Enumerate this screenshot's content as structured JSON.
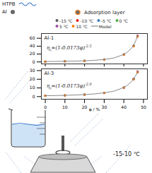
{
  "diagram": {
    "materials": [
      {
        "label": "HTPB"
      },
      {
        "label": "Al"
      },
      {
        "label": "Adsorption layer"
      }
    ],
    "condition": "-15-10 ℃"
  },
  "chart_data": [
    {
      "type": "scatter",
      "title": "Al-1",
      "marker": "circle",
      "tick_labels": "y",
      "equation": {
        "symbol": "η",
        "subscript": "r",
        "expression": "=(1-0.0173φ)",
        "exponent": "-2.5"
      },
      "x": [
        0,
        10,
        20,
        30,
        40,
        45,
        47
      ],
      "xlim": [
        -2,
        52
      ],
      "xticks": [
        0,
        10,
        20,
        30,
        40,
        50
      ],
      "ylim": [
        -5,
        72
      ],
      "yticks": [
        0,
        20,
        40,
        60
      ],
      "series": [
        {
          "name": "-15 ℃",
          "color": "#555555",
          "values": [
            1,
            1.6,
            2.9,
            6.3,
            19,
            41,
            66
          ]
        },
        {
          "name": "-10 ℃",
          "color": "#e41a1c",
          "values": [
            1,
            1.6,
            2.8,
            6.1,
            18.5,
            40,
            64
          ]
        },
        {
          "name": "-5 ℃",
          "color": "#377eb8",
          "values": [
            1,
            1.5,
            2.9,
            6.2,
            19.2,
            41.5,
            65
          ]
        },
        {
          "name": "0 ℃",
          "color": "#4daf4a",
          "values": [
            1,
            1.6,
            3,
            6.4,
            18.8,
            40.5,
            65.5
          ]
        },
        {
          "name": "5 ℃",
          "color": "#984ea3",
          "values": [
            1,
            1.6,
            2.9,
            6.1,
            19.1,
            41,
            66.5
          ]
        },
        {
          "name": "10 ℃",
          "color": "#ff7f00",
          "values": [
            1,
            1.5,
            2.8,
            6.2,
            18.7,
            40.2,
            65
          ]
        },
        {
          "name": "Model",
          "type": "line",
          "color": "#888888",
          "x": [
            0,
            5,
            10,
            15,
            20,
            25,
            30,
            35,
            40,
            42,
            44,
            45,
            46,
            47
          ],
          "values": [
            1,
            1.25,
            1.6,
            2.1,
            2.9,
            4.1,
            6.2,
            10,
            19,
            25.6,
            35.9,
            42,
            53,
            66
          ]
        }
      ]
    },
    {
      "type": "scatter",
      "title": "Al-3",
      "marker": "circle",
      "x_label": "φ / %",
      "equation": {
        "symbol": "η",
        "subscript": "r",
        "expression": "=(1-0.0173φ)",
        "exponent": "-2.0"
      },
      "x": [
        0,
        10,
        20,
        30,
        40,
        45,
        47
      ],
      "xlim": [
        -2,
        52
      ],
      "xticks": [
        0,
        10,
        20,
        30,
        40,
        50
      ],
      "ylim": [
        -3,
        32
      ],
      "yticks": [
        0,
        10,
        20,
        30
      ],
      "series": [
        {
          "name": "-15 ℃",
          "color": "#555555",
          "values": [
            1,
            1.5,
            2.3,
            4.3,
            10.6,
            20.5,
            28.8
          ]
        },
        {
          "name": "-10 ℃",
          "color": "#e41a1c",
          "values": [
            1,
            1.4,
            2.4,
            4.2,
            10.3,
            20,
            28
          ]
        },
        {
          "name": "-5 ℃",
          "color": "#377eb8",
          "values": [
            1,
            1.5,
            2.3,
            4.4,
            10.7,
            20.8,
            29
          ]
        },
        {
          "name": "0 ℃",
          "color": "#4daf4a",
          "values": [
            1,
            1.5,
            2.4,
            4.3,
            10.4,
            20.3,
            28.5
          ]
        },
        {
          "name": "5 ℃",
          "color": "#984ea3",
          "values": [
            1,
            1.4,
            2.3,
            4.2,
            10.5,
            20.6,
            29.2
          ]
        },
        {
          "name": "10 ℃",
          "color": "#ff7f00",
          "values": [
            1,
            1.5,
            2.3,
            4.3,
            10.4,
            20.2,
            28.3
          ]
        },
        {
          "name": "Model",
          "type": "line",
          "color": "#888888",
          "x": [
            0,
            5,
            10,
            15,
            20,
            25,
            30,
            35,
            40,
            42,
            44,
            45,
            46,
            47
          ],
          "values": [
            1,
            1.19,
            1.46,
            1.84,
            2.34,
            3.1,
            4.3,
            6.3,
            10.5,
            13.4,
            17.5,
            20.4,
            24,
            28.6
          ]
        }
      ]
    }
  ]
}
